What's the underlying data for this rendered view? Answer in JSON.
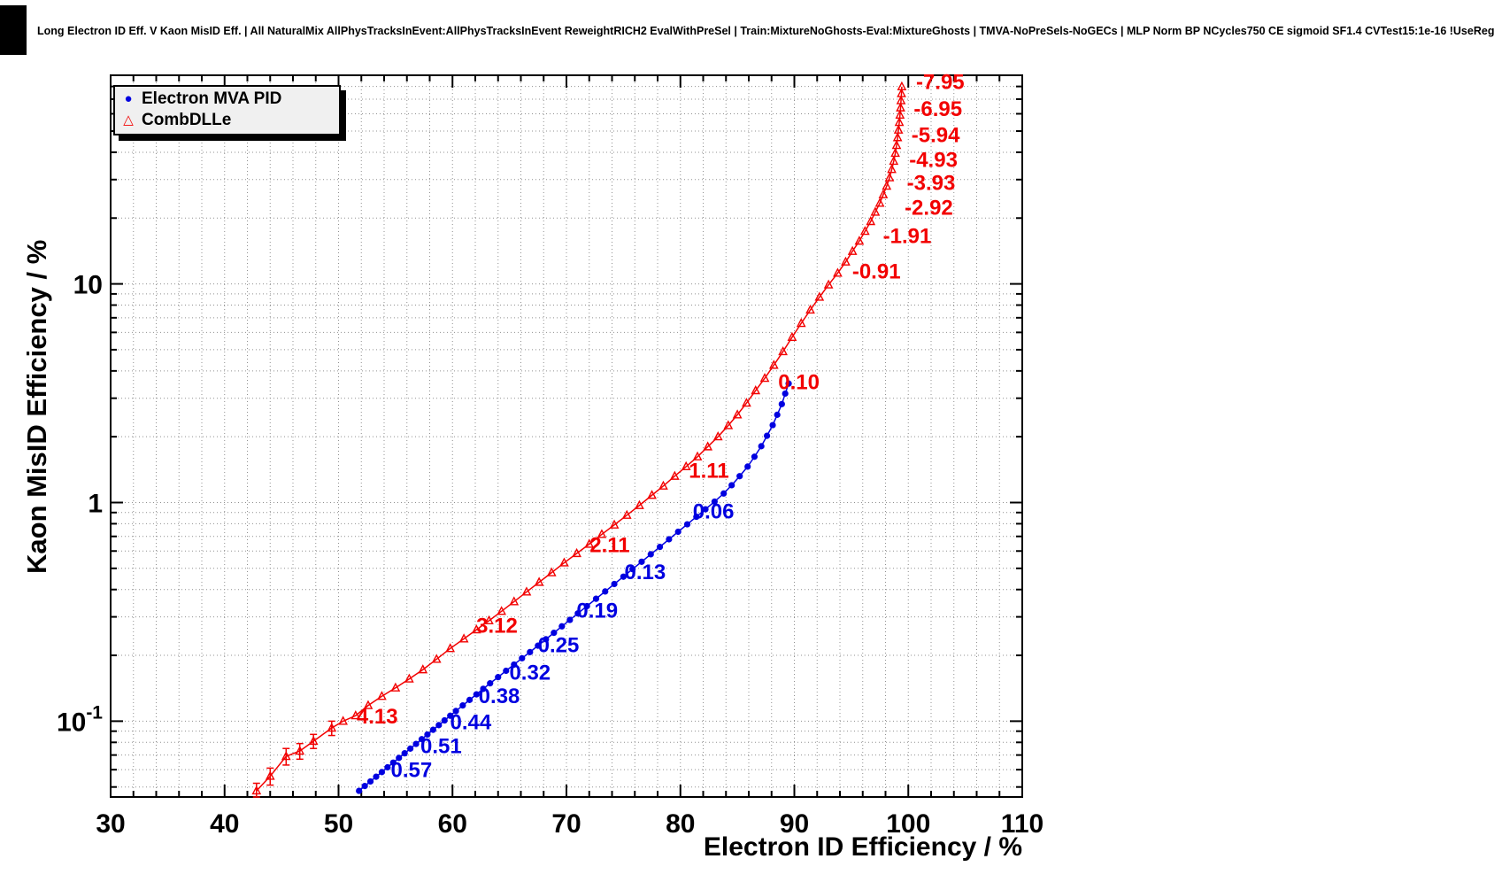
{
  "page": {
    "title": "Long Electron ID Eff. V Kaon MisID Eff. | All NaturalMix AllPhysTracksInEvent:AllPhysTracksInEvent ReweightRICH2 EvalWithPreSel | Train:MixtureNoGhosts-Eval:MixtureGhosts | TMVA-NoPreSels-NoGECs | MLP Norm BP NCycles750 CE sigmoid SF1.4 CVTest15:1e-16 !UseReg"
  },
  "legend": {
    "items": [
      {
        "label": "Electron MVA PID",
        "marker": "circle",
        "color": "#0000e0"
      },
      {
        "label": "CombDLLe",
        "marker": "triangle-open",
        "color": "#f20000"
      }
    ]
  },
  "chart_data": {
    "type": "line",
    "title": "Long Electron ID Eff. V Kaon MisID Eff.",
    "xlabel": "Electron ID Efficiency / %",
    "ylabel": "Kaon MisID Efficiency / %",
    "xlim": [
      30,
      110
    ],
    "ylim": [
      0.045,
      90
    ],
    "yscale": "log",
    "grid": true,
    "grid_color": "#909090",
    "x_ticks": {
      "major": [
        30,
        40,
        50,
        60,
        70,
        80,
        90,
        100,
        110
      ],
      "minor_step": 2
    },
    "y_ticks": [
      {
        "value": 0.1,
        "label": "10^-1"
      },
      {
        "value": 1,
        "label": "1"
      },
      {
        "value": 10,
        "label": "10"
      }
    ],
    "series": [
      {
        "name": "Electron MVA PID",
        "color": "#0000e0",
        "marker": "circle",
        "points": [
          [
            51.8,
            0.048
          ],
          [
            52.3,
            0.0505
          ],
          [
            52.8,
            0.053
          ],
          [
            53.3,
            0.0557
          ],
          [
            53.8,
            0.0585
          ],
          [
            54.3,
            0.0615
          ],
          [
            54.8,
            0.0646
          ],
          [
            55.3,
            0.0679
          ],
          [
            55.8,
            0.0713
          ],
          [
            56.3,
            0.0749
          ],
          [
            56.8,
            0.0787
          ],
          [
            57.3,
            0.0827
          ],
          [
            57.8,
            0.0869
          ],
          [
            58.3,
            0.0913
          ],
          [
            58.8,
            0.0959
          ],
          [
            59.3,
            0.1008
          ],
          [
            59.8,
            0.1059
          ],
          [
            60.3,
            0.1113
          ],
          [
            60.9,
            0.118
          ],
          [
            61.5,
            0.1251
          ],
          [
            62.1,
            0.1326
          ],
          [
            62.7,
            0.1406
          ],
          [
            63.3,
            0.149
          ],
          [
            64.0,
            0.159
          ],
          [
            64.7,
            0.17
          ],
          [
            65.4,
            0.1815
          ],
          [
            66.1,
            0.194
          ],
          [
            66.8,
            0.207
          ],
          [
            67.5,
            0.2215
          ],
          [
            68.2,
            0.237
          ],
          [
            68.9,
            0.2535
          ],
          [
            69.6,
            0.2715
          ],
          [
            70.3,
            0.2905
          ],
          [
            71.0,
            0.311
          ],
          [
            71.8,
            0.336
          ],
          [
            72.6,
            0.363
          ],
          [
            73.4,
            0.392
          ],
          [
            74.2,
            0.424
          ],
          [
            75.0,
            0.458
          ],
          [
            75.8,
            0.496
          ],
          [
            76.6,
            0.536
          ],
          [
            77.4,
            0.58
          ],
          [
            78.2,
            0.627
          ],
          [
            79.0,
            0.679
          ],
          [
            79.8,
            0.735
          ],
          [
            80.6,
            0.795
          ],
          [
            81.4,
            0.861
          ],
          [
            82.2,
            0.932
          ],
          [
            83.0,
            1.01
          ],
          [
            83.8,
            1.1
          ],
          [
            84.5,
            1.2
          ],
          [
            85.2,
            1.32
          ],
          [
            85.9,
            1.46
          ],
          [
            86.5,
            1.62
          ],
          [
            87.1,
            1.81
          ],
          [
            87.6,
            2.02
          ],
          [
            88.1,
            2.26
          ],
          [
            88.5,
            2.52
          ],
          [
            88.9,
            2.82
          ],
          [
            89.2,
            3.15
          ],
          [
            89.5,
            3.5
          ]
        ],
        "point_labels": [
          {
            "text": "0.06",
            "x": 82.9,
            "y": 0.91
          },
          {
            "text": "0.13",
            "x": 76.9,
            "y": 0.48
          },
          {
            "text": "0.19",
            "x": 72.7,
            "y": 0.321
          },
          {
            "text": "0.25",
            "x": 69.3,
            "y": 0.223
          },
          {
            "text": "0.32",
            "x": 66.8,
            "y": 0.167
          },
          {
            "text": "0.38",
            "x": 64.1,
            "y": 0.13
          },
          {
            "text": "0.44",
            "x": 61.6,
            "y": 0.099
          },
          {
            "text": "0.51",
            "x": 59.0,
            "y": 0.077
          },
          {
            "text": "0.57",
            "x": 56.4,
            "y": 0.0598
          }
        ]
      },
      {
        "name": "CombDLLe",
        "color": "#f20000",
        "marker": "triangle-open",
        "points": [
          [
            42.8,
            0.048,
            0.004
          ],
          [
            44.0,
            0.056,
            0.005
          ],
          [
            45.4,
            0.069,
            0.006
          ],
          [
            46.6,
            0.073,
            0.006
          ],
          [
            47.8,
            0.081,
            0.006
          ],
          [
            49.4,
            0.093,
            0.007
          ],
          [
            50.4,
            0.1
          ],
          [
            51.5,
            0.106
          ],
          [
            52.6,
            0.118
          ],
          [
            53.8,
            0.13
          ],
          [
            55.0,
            0.142
          ],
          [
            56.2,
            0.156
          ],
          [
            57.4,
            0.172
          ],
          [
            58.6,
            0.192
          ],
          [
            59.8,
            0.215
          ],
          [
            61.0,
            0.238
          ],
          [
            62.1,
            0.262
          ],
          [
            63.2,
            0.288
          ],
          [
            64.3,
            0.318
          ],
          [
            65.4,
            0.352
          ],
          [
            66.5,
            0.39
          ],
          [
            67.6,
            0.432
          ],
          [
            68.7,
            0.478
          ],
          [
            69.8,
            0.53
          ],
          [
            70.9,
            0.585
          ],
          [
            72.0,
            0.645
          ],
          [
            73.1,
            0.715
          ],
          [
            74.2,
            0.79
          ],
          [
            75.3,
            0.875
          ],
          [
            76.4,
            0.97
          ],
          [
            77.5,
            1.08
          ],
          [
            78.5,
            1.19
          ],
          [
            79.5,
            1.32
          ],
          [
            80.5,
            1.46
          ],
          [
            81.5,
            1.62
          ],
          [
            82.4,
            1.8
          ],
          [
            83.3,
            2.0
          ],
          [
            84.2,
            2.25
          ],
          [
            85.0,
            2.52
          ],
          [
            85.8,
            2.85
          ],
          [
            86.6,
            3.25
          ],
          [
            87.4,
            3.7
          ],
          [
            88.2,
            4.25
          ],
          [
            89.0,
            4.9
          ],
          [
            89.8,
            5.7
          ],
          [
            90.6,
            6.6
          ],
          [
            91.4,
            7.6
          ],
          [
            92.2,
            8.7
          ],
          [
            93.0,
            9.9
          ],
          [
            93.8,
            11.2
          ],
          [
            94.5,
            12.6
          ],
          [
            95.1,
            14.1
          ],
          [
            95.7,
            15.7
          ],
          [
            96.2,
            17.4
          ],
          [
            96.7,
            19.3
          ],
          [
            97.1,
            21.3
          ],
          [
            97.5,
            23.4
          ],
          [
            97.8,
            25.6
          ],
          [
            98.1,
            28.0
          ],
          [
            98.35,
            30.6
          ],
          [
            98.55,
            33.4
          ],
          [
            98.72,
            36.4
          ],
          [
            98.86,
            39.6
          ],
          [
            98.97,
            43.0
          ],
          [
            99.06,
            46.7
          ],
          [
            99.14,
            50.6
          ],
          [
            99.21,
            54.8
          ],
          [
            99.27,
            59.2
          ],
          [
            99.32,
            63.9
          ],
          [
            99.36,
            68.9
          ],
          [
            99.4,
            74.2
          ],
          [
            99.43,
            79.8
          ]
        ],
        "point_labels": [
          {
            "text": "-7.95",
            "x": 102.8,
            "y": 84
          },
          {
            "text": "-6.95",
            "x": 102.6,
            "y": 63
          },
          {
            "text": "-5.94",
            "x": 102.4,
            "y": 48
          },
          {
            "text": "-4.93",
            "x": 102.2,
            "y": 37
          },
          {
            "text": "-3.93",
            "x": 102.0,
            "y": 29
          },
          {
            "text": "-2.92",
            "x": 101.8,
            "y": 22.3
          },
          {
            "text": "-1.91",
            "x": 99.9,
            "y": 16.6
          },
          {
            "text": "-0.91",
            "x": 97.2,
            "y": 11.4
          },
          {
            "text": "0.10",
            "x": 90.4,
            "y": 3.56
          },
          {
            "text": "1.11",
            "x": 82.5,
            "y": 1.4
          },
          {
            "text": "2.11",
            "x": 73.8,
            "y": 0.64
          },
          {
            "text": "3.12",
            "x": 63.9,
            "y": 0.273
          },
          {
            "text": "4.13",
            "x": 53.4,
            "y": 0.105
          }
        ]
      }
    ]
  }
}
